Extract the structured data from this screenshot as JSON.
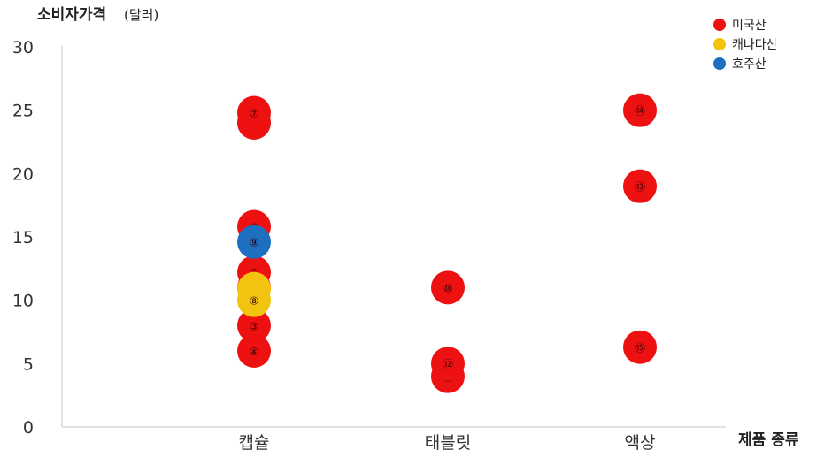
{
  "chart_data": {
    "type": "scatter",
    "ylabel": "소비자가격",
    "ylabel_unit": "(달러)",
    "xlabel": "제품 종류",
    "categories": [
      "캡슐",
      "태블릿",
      "액상"
    ],
    "ylim": [
      0,
      30
    ],
    "yticks": [
      0,
      5,
      10,
      15,
      20,
      25,
      30
    ],
    "grid": false,
    "legend_position": "top-right",
    "colors": {
      "미국산": "#ee1111",
      "캐나다산": "#f2c40f",
      "호주산": "#1f6fc0"
    },
    "series": [
      {
        "name": "미국산",
        "points": [
          {
            "category": "캡슐",
            "value": 24,
            "label": "②"
          },
          {
            "category": "캡슐",
            "value": 24.8,
            "label": "⑦"
          },
          {
            "category": "캡슐",
            "value": 15.8,
            "label": "①"
          },
          {
            "category": "캡슐",
            "value": 12.2,
            "label": "⑤"
          },
          {
            "category": "캡슐",
            "value": 11,
            "label": ""
          },
          {
            "category": "캡슐",
            "value": 8,
            "label": "③"
          },
          {
            "category": "캡슐",
            "value": 6,
            "label": "④"
          },
          {
            "category": "태블릿",
            "value": 11,
            "label": "⑩"
          },
          {
            "category": "태블릿",
            "value": 4,
            "label": "⑪"
          },
          {
            "category": "태블릿",
            "value": 5,
            "label": "⑫"
          },
          {
            "category": "액상",
            "value": 25,
            "label": "⑭"
          },
          {
            "category": "액상",
            "value": 19,
            "label": "⑬"
          },
          {
            "category": "액상",
            "value": 6.3,
            "label": "⑮"
          }
        ]
      },
      {
        "name": "캐나다산",
        "points": [
          {
            "category": "캡슐",
            "value": 10.9,
            "label": "⑥"
          },
          {
            "category": "캡슐",
            "value": 10,
            "label": "⑧"
          }
        ]
      },
      {
        "name": "호주산",
        "points": [
          {
            "category": "캡슐",
            "value": 14.6,
            "label": "⑨"
          }
        ]
      }
    ]
  }
}
